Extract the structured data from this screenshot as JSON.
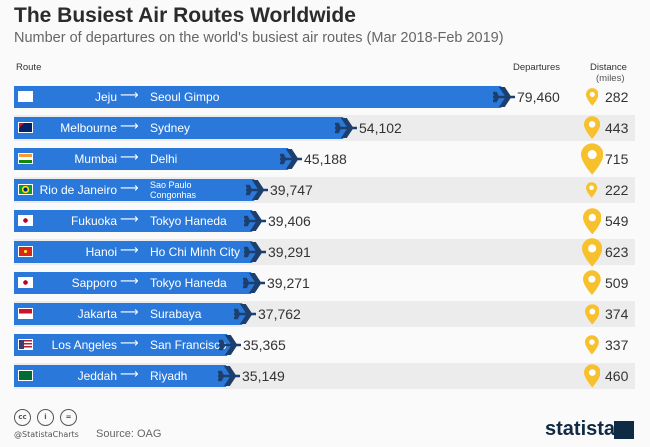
{
  "chart_data": {
    "type": "bar",
    "title": "The Busiest Air Routes Worldwide",
    "subtitle": "Number of departures on the world's busiest air routes (Mar 2018-Feb 2019)",
    "headers": {
      "route": "Route",
      "departures": "Departures",
      "distance": "Distance",
      "distance_unit": "(miles)"
    },
    "rows": [
      {
        "from": "Jeju",
        "to": "Seoul Gimpo",
        "departures": 79460,
        "label": "79,460",
        "distance": "282",
        "flag": "kr"
      },
      {
        "from": "Melbourne",
        "to": "Sydney",
        "departures": 54102,
        "label": "54,102",
        "distance": "443",
        "flag": "au"
      },
      {
        "from": "Mumbai",
        "to": "Delhi",
        "departures": 45188,
        "label": "45,188",
        "distance": "715",
        "flag": "in"
      },
      {
        "from": "Rio de Janeiro",
        "to": "Sao Paulo Congonhas",
        "departures": 39747,
        "label": "39,747",
        "distance": "222",
        "flag": "br"
      },
      {
        "from": "Fukuoka",
        "to": "Tokyo Haneda",
        "departures": 39406,
        "label": "39,406",
        "distance": "549",
        "flag": "jp"
      },
      {
        "from": "Hanoi",
        "to": "Ho Chi Minh City",
        "departures": 39291,
        "label": "39,291",
        "distance": "623",
        "flag": "vn"
      },
      {
        "from": "Sapporo",
        "to": "Tokyo Haneda",
        "departures": 39271,
        "label": "39,271",
        "distance": "509",
        "flag": "jp"
      },
      {
        "from": "Jakarta",
        "to": "Surabaya",
        "departures": 37762,
        "label": "37,762",
        "distance": "374",
        "flag": "id"
      },
      {
        "from": "Los Angeles",
        "to": "San Francisco",
        "departures": 35365,
        "label": "35,365",
        "distance": "337",
        "flag": "us"
      },
      {
        "from": "Jeddah",
        "to": "Riyadh",
        "departures": 35149,
        "label": "35,149",
        "distance": "460",
        "flag": "sa"
      }
    ],
    "colors": {
      "bar": "#2b78db",
      "plane": "#1d3f6e",
      "pin": "#f7c12e"
    }
  },
  "footer": {
    "handle": "@StatistaCharts",
    "source": "Source: OAG",
    "logo": "statista",
    "cc": [
      "cc",
      "i",
      "="
    ]
  }
}
